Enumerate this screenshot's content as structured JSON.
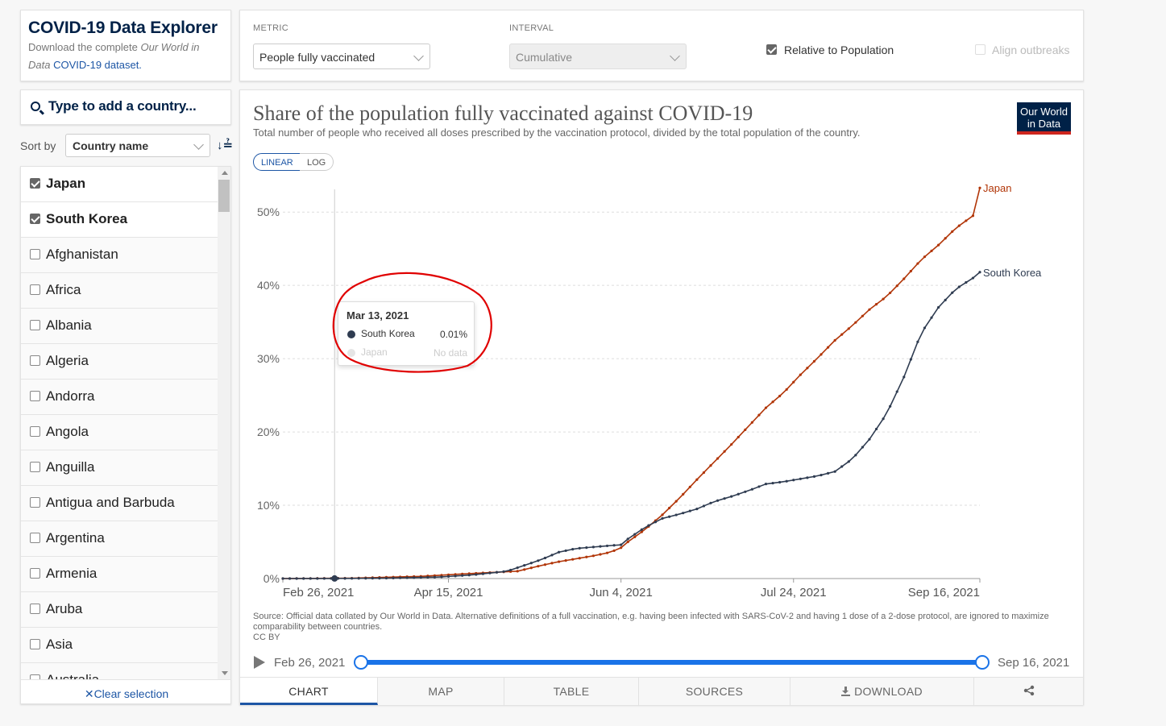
{
  "app": {
    "title": "COVID-19 Data Explorer",
    "subtitle_pre": "Download the complete ",
    "subtitle_italic_1": "Our World in",
    "subtitle_italic_2": "Data",
    "subtitle_link": "COVID-19 dataset."
  },
  "controls": {
    "metric_label": "METRIC",
    "metric_value": "People fully vaccinated",
    "interval_label": "INTERVAL",
    "interval_value": "Cumulative",
    "relative_label": "Relative to Population",
    "relative_checked": true,
    "align_label": "Align outbreaks",
    "align_checked": false
  },
  "sidebar": {
    "search_placeholder": "Type to add a country...",
    "sort_label": "Sort by",
    "sort_value": "Country name",
    "sort_icon": "sort-icon",
    "clear_label": "Clear selection",
    "countries": [
      {
        "name": "Japan",
        "checked": true
      },
      {
        "name": "South Korea",
        "checked": true
      },
      {
        "name": "Afghanistan",
        "checked": false
      },
      {
        "name": "Africa",
        "checked": false
      },
      {
        "name": "Albania",
        "checked": false
      },
      {
        "name": "Algeria",
        "checked": false
      },
      {
        "name": "Andorra",
        "checked": false
      },
      {
        "name": "Angola",
        "checked": false
      },
      {
        "name": "Anguilla",
        "checked": false
      },
      {
        "name": "Antigua and Barbuda",
        "checked": false
      },
      {
        "name": "Argentina",
        "checked": false
      },
      {
        "name": "Armenia",
        "checked": false
      },
      {
        "name": "Aruba",
        "checked": false
      },
      {
        "name": "Asia",
        "checked": false
      },
      {
        "name": "Australia",
        "checked": false
      }
    ]
  },
  "chart": {
    "title": "Share of the population fully vaccinated against COVID-19",
    "subtitle": "Total number of people who received all doses prescribed by the vaccination protocol, divided by the total population of the country.",
    "logo_line1": "Our World",
    "logo_line2": "in Data",
    "scale_linear": "LINEAR",
    "scale_log": "LOG",
    "source_note": "Source: Official data collated by Our World in Data. Alternative definitions of a full vaccination, e.g. having been infected with SARS-CoV-2 and having 1 dose of a 2-dose protocol, are ignored to maximize comparability between countries.",
    "license": "CC BY",
    "timeline_start": "Feb 26, 2021",
    "timeline_end": "Sep 16, 2021",
    "tooltip": {
      "date": "Mar 13, 2021",
      "rows": [
        {
          "name": "South Korea",
          "value": "0.01%",
          "color": "#2f3c51",
          "faded": false
        },
        {
          "name": "Japan",
          "value": "No data",
          "color": "#cccccc",
          "faded": true
        }
      ]
    }
  },
  "tabs": [
    {
      "label": "CHART",
      "active": true
    },
    {
      "label": "MAP",
      "active": false
    },
    {
      "label": "TABLE",
      "active": false
    },
    {
      "label": "SOURCES",
      "active": false
    },
    {
      "label": "DOWNLOAD",
      "active": false
    },
    {
      "label": "",
      "icon": "share-icon",
      "active": false
    }
  ],
  "colors": {
    "japan": "#b13507",
    "south_korea": "#2f3c51",
    "accent": "#1d56a5",
    "annotation": "#e00000"
  },
  "chart_data": {
    "type": "line",
    "title": "Share of the population fully vaccinated against COVID-19",
    "xlabel": "",
    "ylabel": "",
    "x_start": "2021-02-26",
    "x_end": "2021-09-16",
    "x_ticks": [
      "Feb 26, 2021",
      "Apr 15, 2021",
      "Jun 4, 2021",
      "Jul 24, 2021",
      "Sep 16, 2021"
    ],
    "x_tick_days": [
      0,
      48,
      98,
      148,
      202
    ],
    "y_ticks": [
      "0%",
      "10%",
      "20%",
      "30%",
      "40%",
      "50%"
    ],
    "y_tick_values": [
      0,
      10,
      20,
      30,
      40,
      50
    ],
    "ylim": [
      0,
      53
    ],
    "series": [
      {
        "name": "Japan",
        "days": [
          0,
          20,
          40,
          55,
          68,
          75,
          80,
          85,
          90,
          95,
          98,
          100,
          105,
          110,
          115,
          120,
          125,
          130,
          135,
          140,
          145,
          150,
          155,
          160,
          165,
          170,
          175,
          180,
          185,
          190,
          195,
          200,
          202
        ],
        "values": [
          0.0,
          0.05,
          0.3,
          0.7,
          1.0,
          1.8,
          2.3,
          2.7,
          3.1,
          3.6,
          4.2,
          5.0,
          6.7,
          8.7,
          11.0,
          13.5,
          15.9,
          18.3,
          20.8,
          23.3,
          25.3,
          27.8,
          30.1,
          32.5,
          34.5,
          36.7,
          38.5,
          40.9,
          43.5,
          45.5,
          47.8,
          49.5,
          53.3
        ]
      },
      {
        "name": "South Korea",
        "days": [
          0,
          15,
          30,
          45,
          55,
          65,
          70,
          75,
          80,
          85,
          90,
          95,
          98,
          100,
          105,
          110,
          115,
          120,
          125,
          130,
          135,
          140,
          145,
          150,
          155,
          160,
          165,
          170,
          175,
          180,
          185,
          190,
          195,
          200,
          202
        ],
        "values": [
          0.0,
          0.01,
          0.05,
          0.2,
          0.5,
          1.0,
          1.8,
          2.6,
          3.6,
          4.1,
          4.3,
          4.5,
          4.6,
          5.4,
          7.0,
          8.2,
          8.8,
          9.5,
          10.5,
          11.2,
          12.0,
          12.9,
          13.2,
          13.6,
          14.0,
          14.6,
          16.3,
          19.0,
          22.5,
          27.5,
          33.5,
          37.0,
          39.5,
          41.0,
          41.8
        ]
      }
    ],
    "hover_day": 15
  }
}
